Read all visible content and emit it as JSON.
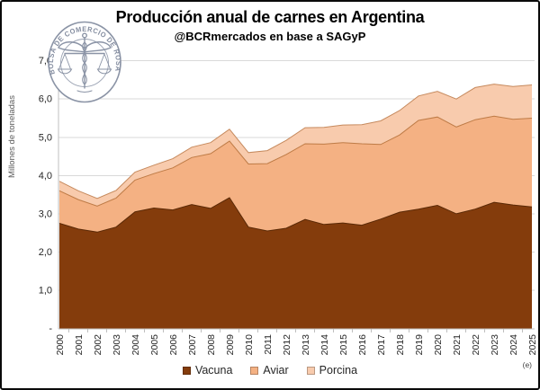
{
  "header": {
    "title": "Producción anual de carnes en Argentina",
    "subtitle": "@BCRmercados en base a SAGyP"
  },
  "logo": {
    "text": "BOLSA DE COMERCIO DE ROSARIO"
  },
  "y_axis": {
    "title": "Millones de toneladas",
    "tick_labels": [
      "7,0",
      "6,0",
      "5,0",
      "4,0",
      "3,0",
      "2,0",
      "1,0",
      "-"
    ]
  },
  "x_axis": {
    "years": [
      "2000",
      "2001",
      "2002",
      "2003",
      "2004",
      "2005",
      "2006",
      "2007",
      "2008",
      "2009",
      "2010",
      "2011",
      "2012",
      "2013",
      "2014",
      "2015",
      "2016",
      "2017",
      "2018",
      "2019",
      "2020",
      "2021",
      "2022",
      "2023",
      "2024",
      "2025"
    ]
  },
  "legend": [
    {
      "label": "Vacuna",
      "color": "#843C0C"
    },
    {
      "label": "Aviar",
      "color": "#F4B183"
    },
    {
      "label": "Porcina",
      "color": "#F8CBAD"
    }
  ],
  "annotation": {
    "estimate_note": "(e)"
  },
  "colors": {
    "grid": "#D9D9D9",
    "axis": "#BFBFBF",
    "tick_text": "#262626",
    "logo_gray": "#8B94A6"
  },
  "chart_data": {
    "type": "area",
    "stacked": true,
    "title": "Producción anual de carnes en Argentina",
    "subtitle": "@BCRmercados en base a SAGyP",
    "xlabel": "",
    "ylabel": "Millones de toneladas",
    "ylim": [
      0,
      7
    ],
    "grid": true,
    "legend_position": "bottom",
    "x": [
      2000,
      2001,
      2002,
      2003,
      2004,
      2005,
      2006,
      2007,
      2008,
      2009,
      2010,
      2011,
      2012,
      2013,
      2014,
      2015,
      2016,
      2017,
      2018,
      2019,
      2020,
      2021,
      2022,
      2023,
      2024,
      2025
    ],
    "last_year_is_estimate": "(e)",
    "series": [
      {
        "name": "Vacuna",
        "color": "#843C0C",
        "edge": "#5A2906",
        "values": [
          2.75,
          2.6,
          2.52,
          2.65,
          3.05,
          3.15,
          3.1,
          3.24,
          3.14,
          3.42,
          2.65,
          2.55,
          2.62,
          2.85,
          2.72,
          2.76,
          2.7,
          2.86,
          3.04,
          3.12,
          3.22,
          3.0,
          3.12,
          3.3,
          3.23,
          3.18
        ]
      },
      {
        "name": "Aviar",
        "color": "#F4B183",
        "edge": "#BE7B46",
        "values": [
          0.85,
          0.77,
          0.68,
          0.76,
          0.83,
          0.9,
          1.1,
          1.23,
          1.43,
          1.48,
          1.65,
          1.76,
          1.93,
          1.98,
          2.1,
          2.1,
          2.13,
          1.95,
          2.02,
          2.32,
          2.31,
          2.27,
          2.34,
          2.25,
          2.24,
          2.32
        ]
      },
      {
        "name": "Porcina",
        "color": "#F8CBAD",
        "edge": "#C68A5E",
        "values": [
          0.25,
          0.23,
          0.2,
          0.2,
          0.21,
          0.22,
          0.24,
          0.27,
          0.29,
          0.31,
          0.3,
          0.34,
          0.37,
          0.42,
          0.44,
          0.46,
          0.5,
          0.62,
          0.64,
          0.64,
          0.67,
          0.73,
          0.84,
          0.84,
          0.86,
          0.87
        ]
      }
    ]
  }
}
